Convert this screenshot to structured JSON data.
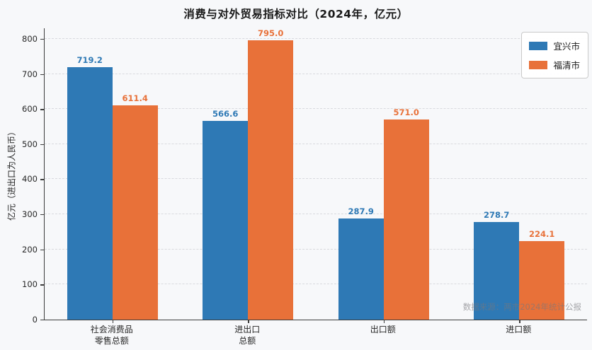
{
  "title": "消费与对外贸易指标对比（2024年，亿元）",
  "watermark": "数据来源：两市2024年统计公报",
  "chart_data": {
    "type": "bar",
    "title": "消费与对外贸易指标对比（2024年，亿元）",
    "categories": [
      "社会消费品\n零售总额",
      "进出口\n总额",
      "出口额",
      "进口额"
    ],
    "series": [
      {
        "name": "宜兴市",
        "color": "#2E79B5",
        "values": [
          719.2,
          566.6,
          287.9,
          278.7
        ]
      },
      {
        "name": "福清市",
        "color": "#E87139",
        "values": [
          611.4,
          795.0,
          571.0,
          224.1
        ]
      }
    ],
    "xlabel": "",
    "ylabel": "亿元（进出口为人民币）",
    "yticks": [
      0,
      100,
      200,
      300,
      400,
      500,
      600,
      700,
      800
    ],
    "ylim": [
      0,
      830
    ],
    "grid": "horizontal-dashed",
    "legend_position": "top-right",
    "value_labels": true
  }
}
